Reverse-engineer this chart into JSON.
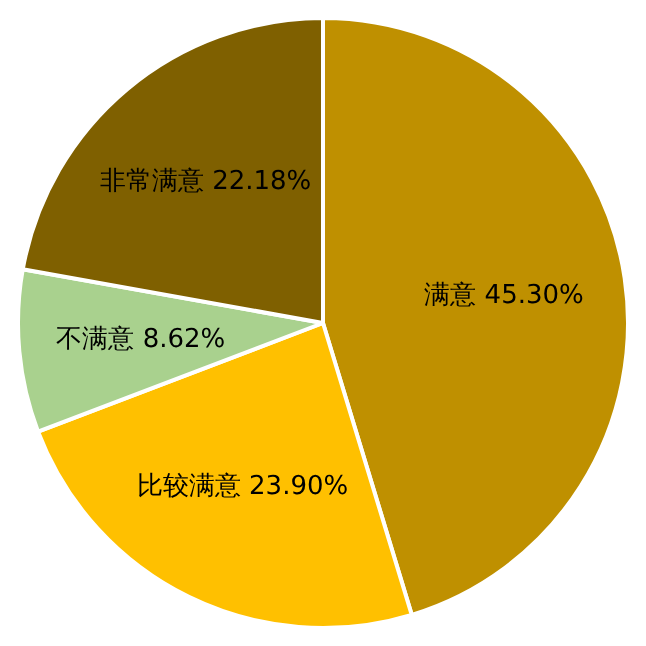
{
  "chart_data": {
    "type": "pie",
    "categories": [
      "满意",
      "比较满意",
      "不满意",
      "非常满意"
    ],
    "values": [
      45.3,
      23.9,
      8.62,
      22.18
    ],
    "colors": [
      "#bf9000",
      "#ffc000",
      "#a9d18e",
      "#7f6000"
    ],
    "value_labels": [
      "45.30%",
      "23.90%",
      "8.62%",
      "22.18%"
    ],
    "legend": false
  }
}
